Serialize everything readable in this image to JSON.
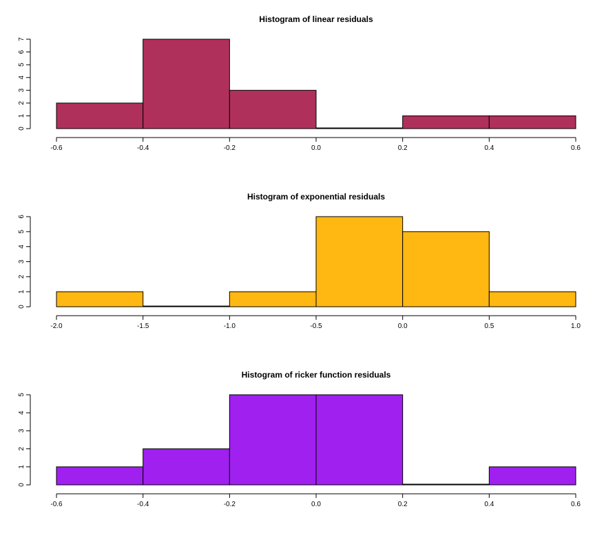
{
  "chart_data": [
    {
      "type": "bar",
      "title": "Histogram of linear residuals",
      "xlabel": "",
      "ylabel": "",
      "fill_color": "#b0305c",
      "bin_edges": [
        -0.6,
        -0.4,
        -0.2,
        0.0,
        0.2,
        0.4,
        0.6
      ],
      "counts": [
        2,
        7,
        3,
        0,
        1,
        1
      ],
      "xlim": [
        -0.6,
        0.6
      ],
      "ylim": [
        0,
        7
      ],
      "x_ticks": [
        -0.6,
        -0.4,
        -0.2,
        0.0,
        0.2,
        0.4,
        0.6
      ],
      "x_tick_labels": [
        "-0.6",
        "-0.4",
        "-0.2",
        "0.0",
        "0.2",
        "0.4",
        "0.6"
      ],
      "y_ticks": [
        0,
        1,
        2,
        3,
        4,
        5,
        6,
        7
      ],
      "y_tick_labels": [
        "0",
        "1",
        "2",
        "3",
        "4",
        "5",
        "6",
        "7"
      ]
    },
    {
      "type": "bar",
      "title": "Histogram of exponential residuals",
      "xlabel": "",
      "ylabel": "",
      "fill_color": "#ffb811",
      "bin_edges": [
        -2.0,
        -1.5,
        -1.0,
        -0.5,
        0.0,
        0.5,
        1.0
      ],
      "counts": [
        1,
        0,
        1,
        6,
        5,
        1
      ],
      "xlim": [
        -2.0,
        1.0
      ],
      "ylim": [
        0,
        6
      ],
      "x_ticks": [
        -2.0,
        -1.5,
        -1.0,
        -0.5,
        0.0,
        0.5,
        1.0
      ],
      "x_tick_labels": [
        "-2.0",
        "-1.5",
        "-1.0",
        "-0.5",
        "0.0",
        "0.5",
        "1.0"
      ],
      "y_ticks": [
        0,
        1,
        2,
        3,
        4,
        5,
        6
      ],
      "y_tick_labels": [
        "0",
        "1",
        "2",
        "3",
        "4",
        "5",
        "6"
      ]
    },
    {
      "type": "bar",
      "title": "Histogram of ricker function residuals",
      "xlabel": "",
      "ylabel": "",
      "fill_color": "#a020f0",
      "bin_edges": [
        -0.6,
        -0.4,
        -0.2,
        0.0,
        0.2,
        0.4,
        0.6
      ],
      "counts": [
        1,
        2,
        5,
        5,
        0,
        1
      ],
      "xlim": [
        -0.6,
        0.6
      ],
      "ylim": [
        0,
        5
      ],
      "x_ticks": [
        -0.6,
        -0.4,
        -0.2,
        0.0,
        0.2,
        0.4,
        0.6
      ],
      "x_tick_labels": [
        "-0.6",
        "-0.4",
        "-0.2",
        "0.0",
        "0.2",
        "0.4",
        "0.6"
      ],
      "y_ticks": [
        0,
        1,
        2,
        3,
        4,
        5
      ],
      "y_tick_labels": [
        "0",
        "1",
        "2",
        "3",
        "4",
        "5"
      ]
    }
  ]
}
